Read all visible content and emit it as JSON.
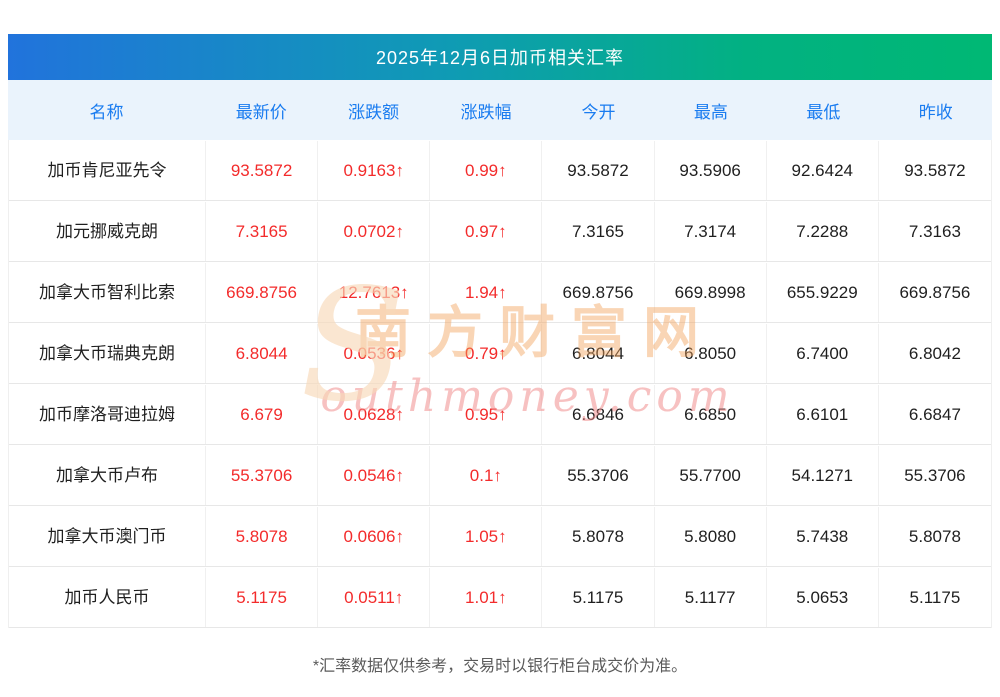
{
  "title": "2025年12月6日加币相关汇率",
  "chart_data": {
    "type": "table",
    "title": "2025年12月6日加币相关汇率",
    "columns": [
      "名称",
      "最新价",
      "涨跌额",
      "涨跌幅",
      "今开",
      "最高",
      "最低",
      "昨收"
    ],
    "rows": [
      [
        "加币肯尼亚先令",
        "93.5872",
        "0.9163↑",
        "0.99↑",
        "93.5872",
        "93.5906",
        "92.6424",
        "93.5872"
      ],
      [
        "加元挪威克朗",
        "7.3165",
        "0.0702↑",
        "0.97↑",
        "7.3165",
        "7.3174",
        "7.2288",
        "7.3163"
      ],
      [
        "加拿大币智利比索",
        "669.8756",
        "12.7613↑",
        "1.94↑",
        "669.8756",
        "669.8998",
        "655.9229",
        "669.8756"
      ],
      [
        "加拿大币瑞典克朗",
        "6.8044",
        "0.0536↑",
        "0.79↑",
        "6.8044",
        "6.8050",
        "6.7400",
        "6.8042"
      ],
      [
        "加币摩洛哥迪拉姆",
        "6.679",
        "0.0628↑",
        "0.95↑",
        "6.6846",
        "6.6850",
        "6.6101",
        "6.6847"
      ],
      [
        "加拿大币卢布",
        "55.3706",
        "0.0546↑",
        "0.1↑",
        "55.3706",
        "55.7700",
        "54.1271",
        "55.3706"
      ],
      [
        "加拿大币澳门币",
        "5.8078",
        "0.0606↑",
        "1.05↑",
        "5.8078",
        "5.8080",
        "5.7438",
        "5.8078"
      ],
      [
        "加币人民币",
        "5.1175",
        "0.0511↑",
        "1.01↑",
        "5.1175",
        "5.1177",
        "5.0653",
        "5.1175"
      ]
    ]
  },
  "watermark": {
    "cn": "南方财富网",
    "en_initial": "S",
    "en_rest": "outhmoney.com"
  },
  "footer": "*汇率数据仅供参考，交易时以银行柜台成交价为准。",
  "colors": {
    "title_gradient_start": "#2173dc",
    "title_gradient_end": "#00b874",
    "header_bg": "#eaf3fc",
    "header_text": "#1a7cf0",
    "up_red": "#f32b2b"
  }
}
